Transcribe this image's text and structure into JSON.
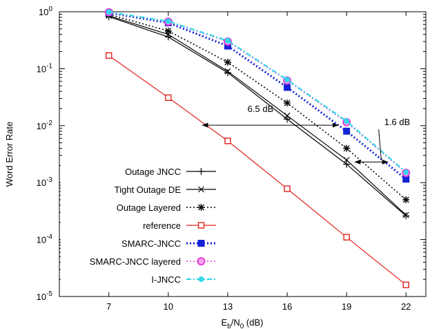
{
  "chart_data": {
    "type": "line",
    "title": "",
    "xlabel": "E_b/N_0 (dB)",
    "xlabel_parts": {
      "main": "E",
      "sub1": "b",
      "slash": "/N",
      "sub2": "0",
      "unit": " (dB)"
    },
    "ylabel": "Word Error Rate",
    "xlim": [
      4.5,
      23
    ],
    "ylim": [
      1e-05,
      1
    ],
    "yscale": "log",
    "grid": false,
    "legend_position": "bottom-left",
    "x_ticks": [
      7,
      10,
      13,
      16,
      19,
      22
    ],
    "x_tick_labels": [
      "7",
      "10",
      "13",
      "16",
      "19",
      "22"
    ],
    "y_ticks": [
      {
        "value": 1,
        "base": "10",
        "exp": "0"
      },
      {
        "value": 0.1,
        "base": "10",
        "exp": "-1"
      },
      {
        "value": 0.01,
        "base": "10",
        "exp": "-2"
      },
      {
        "value": 0.001,
        "base": "10",
        "exp": "-3"
      },
      {
        "value": 0.0001,
        "base": "10",
        "exp": "-4"
      },
      {
        "value": 1e-05,
        "base": "10",
        "exp": "-5"
      }
    ],
    "series": [
      {
        "name": "Outage JNCC",
        "color": "#000000",
        "dash": "solid",
        "marker": "plus",
        "x": [
          7,
          10,
          13,
          16,
          19,
          22
        ],
        "y": [
          0.82,
          0.36,
          0.085,
          0.013,
          0.0021,
          0.00026
        ]
      },
      {
        "name": "Tight Outage DE",
        "color": "#000000",
        "dash": "solid",
        "marker": "cross",
        "x": [
          7,
          10,
          13,
          16,
          19,
          22
        ],
        "y": [
          0.85,
          0.4,
          0.09,
          0.015,
          0.0025,
          0.00027
        ]
      },
      {
        "name": "Outage Layered",
        "color": "#000000",
        "dash": "dotted",
        "marker": "star",
        "x": [
          7,
          10,
          13,
          16,
          19,
          22
        ],
        "y": [
          0.9,
          0.46,
          0.13,
          0.025,
          0.004,
          0.0005
        ]
      },
      {
        "name": "reference",
        "color": "#e4211c",
        "dash": "solid",
        "marker": "open-square",
        "x": [
          7,
          10,
          13,
          16,
          19,
          22
        ],
        "y": [
          0.17,
          0.031,
          0.0054,
          0.00078,
          0.00011,
          1.6e-05
        ]
      },
      {
        "name": "SMARC-JNCC",
        "color": "#1222d6",
        "dash": "dotted-thick",
        "marker": "filled-square",
        "x": [
          7,
          10,
          13,
          16,
          19,
          22
        ],
        "y": [
          0.96,
          0.64,
          0.25,
          0.047,
          0.008,
          0.00115
        ]
      },
      {
        "name": "SMARC-JNCC layered",
        "color": "#e040d8",
        "dash": "dotted",
        "marker": "circle",
        "x": [
          7,
          10,
          13,
          16,
          19,
          22
        ],
        "y": [
          0.98,
          0.67,
          0.3,
          0.062,
          0.0115,
          0.00148
        ]
      },
      {
        "name": "I-JNCC",
        "color": "#31d8e8",
        "dash": "dashdot",
        "marker": "filled-circle",
        "x": [
          7,
          10,
          13,
          16,
          19,
          22
        ],
        "y": [
          0.99,
          0.68,
          0.31,
          0.064,
          0.012,
          0.00152
        ]
      }
    ],
    "annotations": [
      {
        "text": "6.5 dB",
        "arrow_x": [
          11.7,
          18.6
        ],
        "arrow_y": 0.0102,
        "text_x": 14.0,
        "text_y": 0.0175
      },
      {
        "text": "1.6 dB",
        "arrow_x": [
          19.4,
          21.1
        ],
        "arrow_y": 0.0023,
        "text_x": 20.9,
        "text_y": 0.0102,
        "leader_to": [
          20.75,
          0.0025
        ]
      }
    ]
  }
}
